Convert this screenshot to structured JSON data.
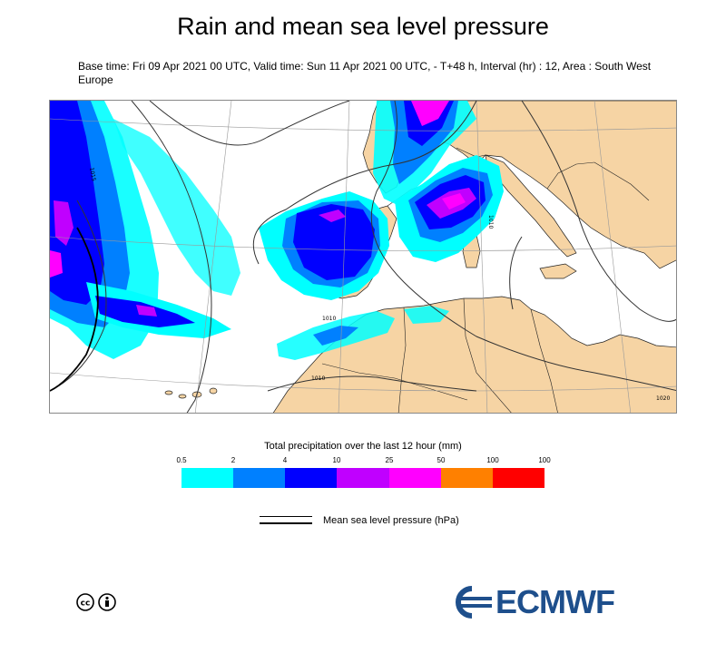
{
  "header": {
    "title": "Rain and mean sea level pressure",
    "subtitle": "Base time: Fri 09 Apr 2021 00 UTC, Valid time: Sun 11 Apr 2021 00 UTC, - T+48 h, Interval (hr) : 12, Area : South West Europe"
  },
  "map": {
    "isobar_labels": {
      "l1": "1010",
      "l2": "1010",
      "l3": "1015",
      "l4": "1020",
      "l5": "1010"
    }
  },
  "legend": {
    "title": "Total precipitation over the last 12 hour (mm)",
    "ticks": [
      "0.5",
      "2",
      "4",
      "10",
      "25",
      "50",
      "100",
      "100"
    ],
    "colors": [
      "#00ffff",
      "#0080ff",
      "#0000ff",
      "#c000ff",
      "#ff00ff",
      "#ff8000",
      "#ff0000"
    ]
  },
  "pressure_legend": {
    "label": "Mean sea level pressure (hPa)"
  },
  "footer": {
    "cc_text": "cc",
    "brand": "ECMWF",
    "brand_color": "#1e4f8c"
  }
}
